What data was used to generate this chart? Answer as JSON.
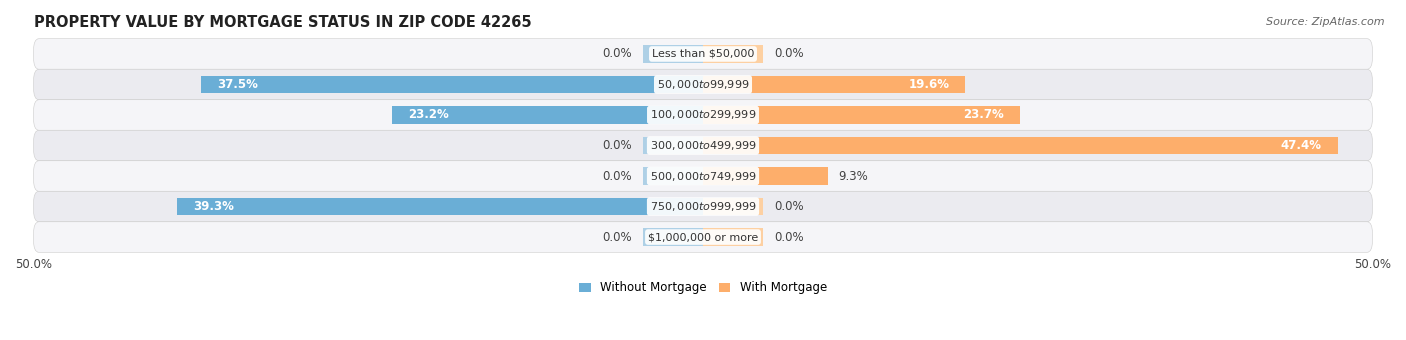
{
  "title": "PROPERTY VALUE BY MORTGAGE STATUS IN ZIP CODE 42265",
  "source": "Source: ZipAtlas.com",
  "categories": [
    "Less than $50,000",
    "$50,000 to $99,999",
    "$100,000 to $299,999",
    "$300,000 to $499,999",
    "$500,000 to $749,999",
    "$750,000 to $999,999",
    "$1,000,000 or more"
  ],
  "without_mortgage": [
    0.0,
    37.5,
    23.2,
    0.0,
    0.0,
    39.3,
    0.0
  ],
  "with_mortgage": [
    0.0,
    19.6,
    23.7,
    47.4,
    9.3,
    0.0,
    0.0
  ],
  "color_without": "#6aaed6",
  "color_with": "#fdae6b",
  "color_without_light": "#aed0e6",
  "color_with_light": "#fdd0a2",
  "row_colors": [
    "#f5f5f8",
    "#ebebf0"
  ],
  "xlim_left": -50,
  "xlim_right": 50,
  "bar_height": 0.58,
  "stub_size": 4.5,
  "title_fontsize": 10.5,
  "label_fontsize": 8.5,
  "category_fontsize": 8.0,
  "source_fontsize": 8.0,
  "inside_label_threshold": 15.0
}
